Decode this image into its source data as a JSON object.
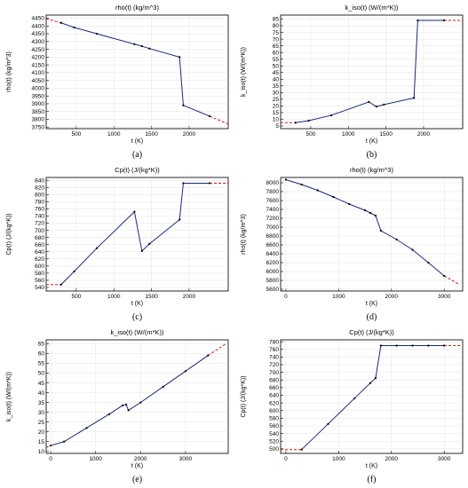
{
  "colors": {
    "series": "#1a2a78",
    "extrapolation": "#c8201c",
    "point": "#000000"
  },
  "chart_data": [
    {
      "id": "a",
      "type": "line",
      "caption": "(a)",
      "title": "rho(t) (kg/m^3)",
      "xlabel": "t (K)",
      "ylabel": "rho(t) (kg/m^3)",
      "xlim": [
        100,
        2520
      ],
      "ylim": [
        3740,
        4470
      ],
      "xticks": [
        500,
        1000,
        1500,
        2000
      ],
      "yticks": [
        3750,
        3800,
        3850,
        3900,
        3950,
        4000,
        4050,
        4100,
        4150,
        4200,
        4250,
        4300,
        4350,
        4400,
        4450
      ],
      "x": [
        298,
        473,
        773,
        1273,
        1373,
        1473,
        1873,
        1923,
        2273
      ],
      "y": [
        4420,
        4390,
        4350,
        4283,
        4270,
        4255,
        4200,
        3890,
        3820
      ],
      "extrap_left": [
        [
          100,
          4447
        ],
        [
          298,
          4420
        ]
      ],
      "extrap_right": [
        [
          2273,
          3820
        ],
        [
          2520,
          3770
        ]
      ]
    },
    {
      "id": "b",
      "type": "line",
      "caption": "(b)",
      "title": "k_iso(t) (W/(m*K))",
      "xlabel": "t (K)",
      "ylabel": "k_iso(t) (W/(m*K))",
      "xlim": [
        100,
        2520
      ],
      "ylim": [
        3,
        88
      ],
      "xticks": [
        500,
        1000,
        1500,
        2000
      ],
      "yticks": [
        5,
        10,
        15,
        20,
        25,
        30,
        35,
        40,
        45,
        50,
        55,
        60,
        65,
        70,
        75,
        80,
        85
      ],
      "x": [
        298,
        473,
        773,
        1273,
        1373,
        1473,
        1873,
        1923,
        2273
      ],
      "y": [
        7.5,
        9,
        13,
        23,
        19.5,
        21,
        26,
        84,
        84
      ],
      "extrap_left": [
        [
          100,
          7.5
        ],
        [
          298,
          7.5
        ]
      ],
      "extrap_right": [
        [
          2273,
          84
        ],
        [
          2520,
          84
        ]
      ]
    },
    {
      "id": "c",
      "type": "line",
      "caption": "(c)",
      "title": "Cp(t) (J/(kg*K))",
      "xlabel": "t (K)",
      "ylabel": "Cp(t) (J/(kg*K))",
      "xlim": [
        100,
        2520
      ],
      "ylim": [
        530,
        848
      ],
      "xticks": [
        500,
        1000,
        1500,
        2000
      ],
      "yticks": [
        540,
        560,
        580,
        600,
        620,
        640,
        660,
        680,
        700,
        720,
        740,
        760,
        780,
        800,
        820,
        840
      ],
      "x": [
        298,
        473,
        773,
        1273,
        1373,
        1473,
        1873,
        1923,
        2273
      ],
      "y": [
        548,
        585,
        650,
        752,
        642,
        662,
        730,
        832,
        832
      ],
      "extrap_left": [
        [
          100,
          548
        ],
        [
          298,
          548
        ]
      ],
      "extrap_right": [
        [
          2273,
          832
        ],
        [
          2520,
          832
        ]
      ]
    },
    {
      "id": "d",
      "type": "line",
      "caption": "(d)",
      "title": "rho(t) (kg/m^3)",
      "xlabel": "t (K)",
      "ylabel": "rho(t) (kg/m^3)",
      "xlim": [
        -100,
        3350
      ],
      "ylim": [
        5560,
        8120
      ],
      "xticks": [
        0,
        1000,
        2000,
        3000
      ],
      "yticks": [
        5600,
        5800,
        6000,
        6200,
        6400,
        6600,
        6800,
        7000,
        7200,
        7400,
        7600,
        7800,
        8000
      ],
      "x": [
        0,
        298,
        600,
        900,
        1200,
        1500,
        1600,
        1700,
        1800,
        2100,
        2400,
        2700,
        3000
      ],
      "y": [
        8070,
        7960,
        7830,
        7680,
        7520,
        7380,
        7320,
        7260,
        6920,
        6720,
        6490,
        6200,
        5900
      ],
      "extrap_left": [],
      "extrap_right": [
        [
          3000,
          5900
        ],
        [
          3300,
          5700
        ]
      ]
    },
    {
      "id": "e",
      "type": "line",
      "caption": "(e)",
      "title": "k_iso(t) (W/(m*K))",
      "xlabel": "t (K)",
      "ylabel": "k_iso(t) (W/(m*K))",
      "xlim": [
        -100,
        3950
      ],
      "ylim": [
        9,
        67
      ],
      "xticks": [
        0,
        1000,
        2000,
        3000
      ],
      "yticks": [
        10,
        15,
        20,
        25,
        30,
        35,
        40,
        45,
        50,
        55,
        60,
        65
      ],
      "x": [
        0,
        298,
        800,
        1300,
        1600,
        1680,
        1730,
        2000,
        2500,
        3000,
        3500
      ],
      "y": [
        13,
        15,
        22,
        29,
        33.5,
        34,
        31,
        35,
        43,
        51,
        59
      ],
      "extrap_left": [
        [
          -100,
          12
        ],
        [
          0,
          13
        ]
      ],
      "extrap_right": [
        [
          3500,
          59
        ],
        [
          3900,
          65
        ]
      ]
    },
    {
      "id": "f",
      "type": "line",
      "caption": "(f)",
      "title": "Cp(t) (J/(kg*K))",
      "xlabel": "t (K)",
      "ylabel": "Cp(t) (J/(kg*K))",
      "xlim": [
        -100,
        3350
      ],
      "ylim": [
        488,
        785
      ],
      "xticks": [
        0,
        1000,
        2000,
        3000
      ],
      "yticks": [
        500,
        520,
        540,
        560,
        580,
        600,
        620,
        640,
        660,
        680,
        700,
        720,
        740,
        760,
        780
      ],
      "x": [
        298,
        800,
        1300,
        1600,
        1700,
        1800,
        2100,
        2400,
        2700,
        3000
      ],
      "y": [
        498,
        565,
        632,
        672,
        685,
        770,
        770,
        770,
        770,
        770
      ],
      "extrap_left": [
        [
          -100,
          498
        ],
        [
          298,
          498
        ]
      ],
      "extrap_right": [
        [
          3000,
          770
        ],
        [
          3300,
          770
        ]
      ]
    }
  ]
}
